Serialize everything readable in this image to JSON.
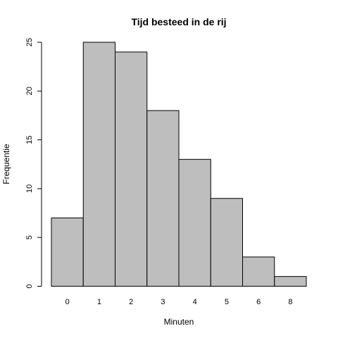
{
  "chart_data": {
    "type": "bar",
    "title": "Tijd besteed in de rij",
    "xlabel": "Minuten",
    "ylabel": "Frequentie",
    "categories": [
      "0",
      "1",
      "2",
      "3",
      "4",
      "5",
      "6",
      "8"
    ],
    "values": [
      7,
      25,
      24,
      18,
      13,
      9,
      3,
      1
    ],
    "ylim": [
      0,
      25
    ],
    "yticks": [
      0,
      5,
      10,
      15,
      20,
      25
    ],
    "bar_color": "#bebebe",
    "border_color": "#000000",
    "grid": false,
    "legend": "none"
  }
}
